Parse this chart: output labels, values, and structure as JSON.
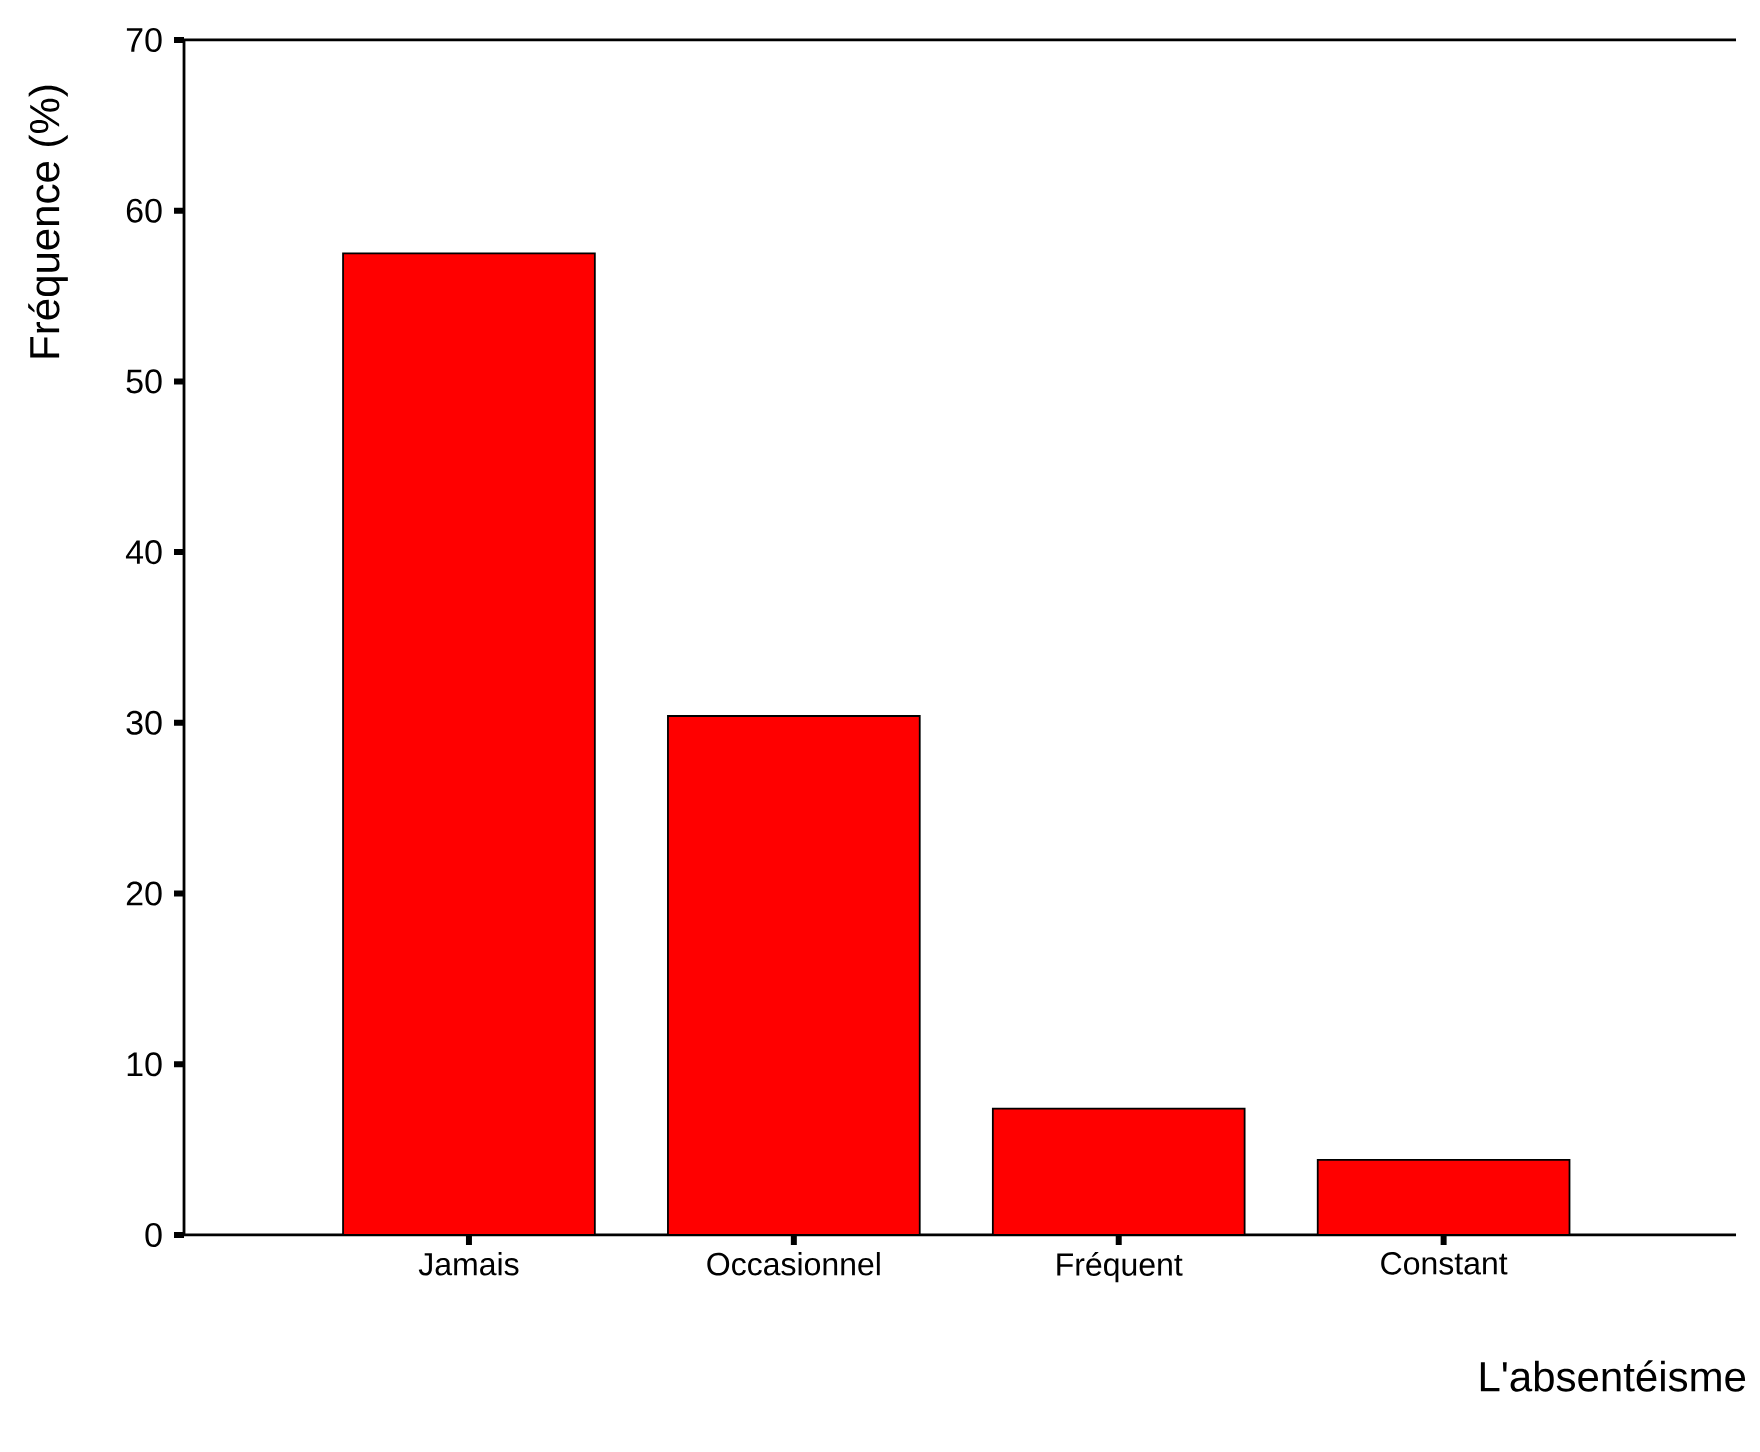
{
  "chart_data": {
    "type": "bar",
    "xlabel": "L'absentéisme",
    "ylabel": "Fréquence (%)",
    "categories": [
      "Jamais",
      "Occasionnel",
      "Fréquent",
      "Constant"
    ],
    "values": [
      57.5,
      30.4,
      7.4,
      4.4
    ],
    "color": "#ff0000",
    "ylim": [
      0,
      70
    ],
    "yticks": [
      0,
      10,
      20,
      30,
      40,
      50,
      60,
      70
    ],
    "grid": false
  }
}
